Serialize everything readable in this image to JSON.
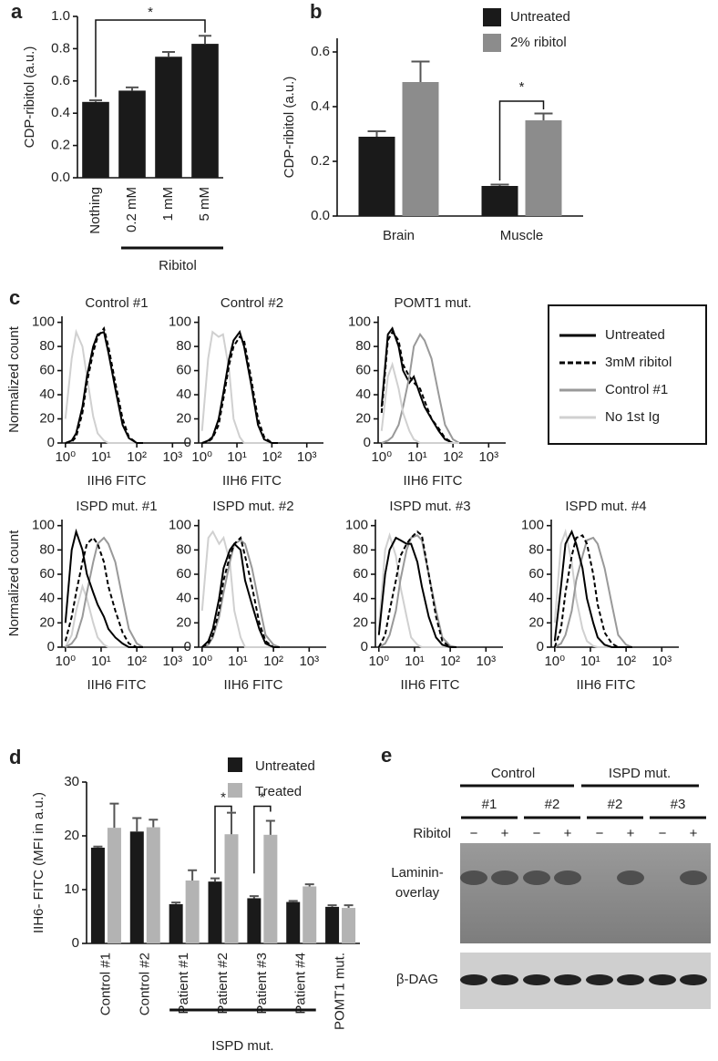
{
  "chart_data": [
    {
      "type": "bar",
      "panel": "a",
      "ylabel": "CDP-ribitol (a.u.)",
      "categories": [
        "Nothing",
        "0.2 mM",
        "1 mM",
        "5 mM"
      ],
      "values": [
        0.47,
        0.54,
        0.75,
        0.83
      ],
      "errors": [
        0.01,
        0.02,
        0.03,
        0.05
      ],
      "color": "#1a1a1a",
      "ylim": [
        0,
        1.0
      ],
      "yticks": [
        {
          "value": 0,
          "label": "0.0"
        },
        0.2,
        0.4,
        0.6,
        0.8,
        {
          "value": 1.0,
          "label": "1.0"
        }
      ],
      "group_label": "Ribitol",
      "annotations": [
        "*"
      ]
    },
    {
      "type": "groupedbar",
      "panel": "b",
      "ylabel": "CDP-ribitol (a.u.)",
      "categories": [
        "Brain",
        "Muscle"
      ],
      "series": [
        {
          "name": "Untreated",
          "color": "#1a1a1a",
          "values": [
            0.29,
            0.11
          ],
          "errors": [
            0.02,
            0.005
          ]
        },
        {
          "name": "2% ribitol",
          "color": "#8c8c8c",
          "values": [
            0.49,
            0.35
          ],
          "errors": [
            0.075,
            0.025
          ]
        }
      ],
      "ylim": [
        0,
        0.65
      ],
      "yticks": [
        {
          "value": 0,
          "label": "0.0"
        },
        0.2,
        0.4,
        0.6
      ],
      "annotations": [
        "*"
      ]
    },
    {
      "type": "hist",
      "panel": "c",
      "title": "Control #1",
      "ylabel": "Normalized count",
      "xlabel": "IIH6 FITC",
      "xlog": true,
      "x": [
        1,
        1.5,
        2,
        3,
        4,
        6,
        8,
        12,
        16,
        25,
        40,
        60,
        100,
        150
      ],
      "xlim": [
        0.8,
        3000
      ],
      "xticks": [
        {
          "value": 1,
          "label": "10⁰"
        },
        {
          "value": 10,
          "label": "10¹"
        },
        {
          "value": 100,
          "label": "10²"
        },
        {
          "value": 1000,
          "label": "10³"
        }
      ],
      "ylim": [
        0,
        105
      ],
      "yticks": [
        0,
        20,
        40,
        60,
        80,
        100
      ],
      "series": [
        {
          "color": "#d0d0d0",
          "dash": false,
          "values": [
            20,
            70,
            92,
            80,
            55,
            22,
            8,
            2,
            0,
            0,
            0,
            0,
            0,
            0
          ]
        },
        {
          "color": "#000000",
          "dash": false,
          "values": [
            0,
            2,
            8,
            30,
            55,
            80,
            90,
            92,
            75,
            45,
            15,
            4,
            0,
            0
          ]
        },
        {
          "color": "#000000",
          "dash": true,
          "values": [
            0,
            1,
            5,
            25,
            50,
            75,
            88,
            95,
            80,
            50,
            20,
            5,
            0,
            0
          ]
        }
      ]
    },
    {
      "type": "hist",
      "title": "Control #2",
      "xlabel": "IIH6 FITC",
      "xlog": true,
      "x": [
        1,
        1.5,
        2,
        3,
        4,
        6,
        8,
        12,
        16,
        25,
        40,
        60,
        100,
        150
      ],
      "xlim": [
        0.8,
        3000
      ],
      "xticks": [
        {
          "value": 1,
          "label": "10⁰"
        },
        {
          "value": 10,
          "label": "10¹"
        },
        {
          "value": 100,
          "label": "10²"
        },
        {
          "value": 1000,
          "label": "10³"
        }
      ],
      "ylim": [
        0,
        105
      ],
      "yticks": [
        0,
        20,
        40,
        60,
        80,
        100
      ],
      "series": [
        {
          "color": "#d0d0d0",
          "dash": false,
          "values": [
            10,
            70,
            92,
            88,
            90,
            60,
            20,
            5,
            0,
            0,
            0,
            0,
            0,
            0
          ]
        },
        {
          "color": "#000000",
          "dash": false,
          "values": [
            0,
            2,
            5,
            20,
            40,
            70,
            85,
            92,
            80,
            50,
            15,
            3,
            0,
            0
          ]
        },
        {
          "color": "#000000",
          "dash": true,
          "values": [
            0,
            1,
            4,
            15,
            35,
            65,
            80,
            88,
            85,
            55,
            20,
            5,
            0,
            0
          ]
        }
      ]
    },
    {
      "type": "hist",
      "title": "POMT1 mut.",
      "xlabel": "IIH6 FITC",
      "xlog": true,
      "x": [
        1,
        1.5,
        2,
        3,
        4,
        6,
        8,
        12,
        16,
        25,
        40,
        60,
        100,
        150
      ],
      "xlim": [
        0.8,
        3000
      ],
      "xticks": [
        {
          "value": 1,
          "label": "10⁰"
        },
        {
          "value": 10,
          "label": "10¹"
        },
        {
          "value": 100,
          "label": "10²"
        },
        {
          "value": 1000,
          "label": "10³"
        }
      ],
      "ylim": [
        0,
        105
      ],
      "yticks": [
        0,
        20,
        40,
        60,
        80,
        100
      ],
      "legend": "right",
      "series": [
        {
          "name": "Untreated",
          "color": "#000000",
          "dash": false,
          "values": [
            30,
            90,
            95,
            80,
            60,
            50,
            55,
            40,
            30,
            20,
            10,
            3,
            0,
            0
          ]
        },
        {
          "name": "3mM ribitol",
          "color": "#000000",
          "dash": true,
          "values": [
            25,
            85,
            92,
            85,
            65,
            55,
            50,
            45,
            35,
            20,
            12,
            4,
            0,
            0
          ]
        },
        {
          "name": "Control #1",
          "color": "#999999",
          "dash": false,
          "values": [
            0,
            2,
            5,
            15,
            30,
            55,
            80,
            90,
            85,
            70,
            40,
            15,
            3,
            0
          ]
        },
        {
          "name": "No 1st Ig",
          "color": "#d0d0d0",
          "dash": false,
          "values": [
            10,
            55,
            65,
            45,
            25,
            10,
            3,
            0,
            0,
            0,
            0,
            0,
            0,
            0
          ]
        }
      ]
    },
    {
      "type": "hist",
      "title": "ISPD mut. #1",
      "ylabel": "Normalized count",
      "xlabel": "IIH6 FITC",
      "xlog": true,
      "x": [
        1,
        1.5,
        2,
        3,
        4,
        6,
        8,
        12,
        16,
        25,
        40,
        60,
        100,
        150
      ],
      "xlim": [
        0.8,
        3000
      ],
      "xticks": [
        {
          "value": 1,
          "label": "10⁰"
        },
        {
          "value": 10,
          "label": "10¹"
        },
        {
          "value": 100,
          "label": "10²"
        },
        {
          "value": 1000,
          "label": "10³"
        }
      ],
      "ylim": [
        0,
        105
      ],
      "yticks": [
        0,
        20,
        40,
        60,
        80,
        100
      ],
      "series": [
        {
          "color": "#d0d0d0",
          "dash": false,
          "values": [
            0,
            10,
            30,
            50,
            40,
            20,
            8,
            2,
            0,
            0,
            0,
            0,
            0,
            0
          ]
        },
        {
          "color": "#999999",
          "dash": false,
          "values": [
            0,
            3,
            8,
            25,
            45,
            70,
            85,
            90,
            85,
            70,
            40,
            15,
            3,
            0
          ]
        },
        {
          "color": "#000000",
          "dash": false,
          "values": [
            20,
            80,
            95,
            80,
            60,
            45,
            35,
            25,
            15,
            8,
            3,
            0,
            0,
            0
          ]
        },
        {
          "color": "#000000",
          "dash": true,
          "values": [
            5,
            25,
            45,
            70,
            85,
            90,
            85,
            70,
            50,
            30,
            12,
            3,
            0,
            0
          ]
        }
      ]
    },
    {
      "type": "hist",
      "title": "ISPD mut. #2",
      "xlabel": "IIH6 FITC",
      "xlog": true,
      "x": [
        1,
        1.5,
        2,
        3,
        4,
        6,
        8,
        12,
        16,
        25,
        40,
        60,
        100,
        150
      ],
      "xlim": [
        0.8,
        3000
      ],
      "xticks": [
        {
          "value": 1,
          "label": "10⁰"
        },
        {
          "value": 10,
          "label": "10¹"
        },
        {
          "value": 100,
          "label": "10²"
        },
        {
          "value": 1000,
          "label": "10³"
        }
      ],
      "ylim": [
        0,
        105
      ],
      "yticks": [
        0,
        20,
        40,
        60,
        80,
        100
      ],
      "series": [
        {
          "color": "#d0d0d0",
          "dash": false,
          "values": [
            30,
            90,
            95,
            85,
            90,
            70,
            30,
            8,
            0,
            0,
            0,
            0,
            0,
            0
          ]
        },
        {
          "color": "#999999",
          "dash": false,
          "values": [
            0,
            2,
            8,
            25,
            45,
            70,
            85,
            88,
            85,
            65,
            35,
            10,
            2,
            0
          ]
        },
        {
          "color": "#000000",
          "dash": false,
          "values": [
            0,
            5,
            15,
            40,
            65,
            80,
            85,
            80,
            55,
            35,
            15,
            3,
            0,
            0
          ]
        },
        {
          "color": "#000000",
          "dash": true,
          "values": [
            0,
            3,
            10,
            30,
            55,
            75,
            85,
            90,
            75,
            50,
            20,
            5,
            0,
            0
          ]
        }
      ]
    },
    {
      "type": "hist",
      "title": "ISPD mut. #3",
      "xlabel": "IIH6 FITC",
      "xlog": true,
      "x": [
        1,
        1.5,
        2,
        3,
        4,
        6,
        8,
        12,
        16,
        25,
        40,
        60,
        100,
        150
      ],
      "xlim": [
        0.8,
        3000
      ],
      "xticks": [
        {
          "value": 1,
          "label": "10⁰"
        },
        {
          "value": 10,
          "label": "10¹"
        },
        {
          "value": 100,
          "label": "10²"
        },
        {
          "value": 1000,
          "label": "10³"
        }
      ],
      "ylim": [
        0,
        105
      ],
      "yticks": [
        0,
        20,
        40,
        60,
        80,
        100
      ],
      "series": [
        {
          "color": "#d0d0d0",
          "dash": false,
          "values": [
            15,
            80,
            92,
            75,
            50,
            25,
            8,
            2,
            0,
            0,
            0,
            0,
            0,
            0
          ]
        },
        {
          "color": "#999999",
          "dash": false,
          "values": [
            0,
            3,
            10,
            30,
            55,
            80,
            90,
            92,
            88,
            60,
            30,
            8,
            1,
            0
          ]
        },
        {
          "color": "#000000",
          "dash": false,
          "values": [
            10,
            60,
            80,
            90,
            88,
            85,
            85,
            70,
            50,
            25,
            8,
            2,
            0,
            0
          ]
        },
        {
          "color": "#000000",
          "dash": true,
          "values": [
            0,
            10,
            30,
            55,
            75,
            85,
            90,
            95,
            92,
            60,
            25,
            5,
            0,
            0
          ]
        }
      ]
    },
    {
      "type": "hist",
      "title": "ISPD mut. #4",
      "xlabel": "IIH6 FITC",
      "xlog": true,
      "x": [
        1,
        1.5,
        2,
        3,
        4,
        6,
        8,
        12,
        16,
        25,
        40,
        60,
        100,
        150
      ],
      "xlim": [
        0.8,
        3000
      ],
      "xticks": [
        {
          "value": 1,
          "label": "10⁰"
        },
        {
          "value": 10,
          "label": "10¹"
        },
        {
          "value": 100,
          "label": "10²"
        },
        {
          "value": 1000,
          "label": "10³"
        }
      ],
      "ylim": [
        0,
        105
      ],
      "yticks": [
        0,
        20,
        40,
        60,
        80,
        100
      ],
      "series": [
        {
          "color": "#d0d0d0",
          "dash": false,
          "values": [
            20,
            85,
            95,
            70,
            40,
            15,
            5,
            1,
            0,
            0,
            0,
            0,
            0,
            0
          ]
        },
        {
          "color": "#999999",
          "dash": false,
          "values": [
            0,
            3,
            10,
            30,
            55,
            75,
            88,
            90,
            85,
            65,
            35,
            10,
            2,
            0
          ]
        },
        {
          "color": "#000000",
          "dash": false,
          "values": [
            5,
            50,
            85,
            95,
            85,
            65,
            40,
            20,
            8,
            2,
            0,
            0,
            0,
            0
          ]
        },
        {
          "color": "#000000",
          "dash": true,
          "values": [
            0,
            15,
            45,
            75,
            90,
            92,
            85,
            60,
            35,
            12,
            3,
            0,
            0,
            0
          ]
        }
      ]
    },
    {
      "type": "groupedbar",
      "panel": "d",
      "ylabel": "IIH6- FITC (MFI in a.u.)",
      "categories": [
        "Control #1",
        "Control #2",
        "Patient #1",
        "Patient #2",
        "Patient #3",
        "Patient #4",
        "POMT1 mut."
      ],
      "series": [
        {
          "name": "Untreated",
          "color": "#1a1a1a",
          "values": [
            17.8,
            20.8,
            7.3,
            11.5,
            8.4,
            7.7,
            6.8
          ],
          "errors": [
            0.2,
            2.5,
            0.3,
            0.6,
            0.4,
            0.2,
            0.3
          ]
        },
        {
          "name": "Treated",
          "color": "#b3b3b3",
          "values": [
            21.5,
            21.6,
            11.7,
            20.3,
            20.2,
            10.6,
            6.6
          ],
          "errors": [
            4.5,
            1.4,
            1.9,
            4.0,
            2.6,
            0.4,
            0.5
          ]
        }
      ],
      "ylim": [
        0,
        30
      ],
      "yticks": [
        0,
        10,
        20,
        30
      ],
      "group_label": "ISPD mut.",
      "annotations": [
        "*",
        "*"
      ]
    }
  ],
  "blot": {
    "panel": "e",
    "groups": [
      "Control",
      "ISPD mut."
    ],
    "lanes": [
      "#1",
      "#2",
      "#2",
      "#3"
    ],
    "treatment_label": "Ribitol",
    "treatments": [
      "−",
      "+",
      "−",
      "+",
      "−",
      "+",
      "−",
      "+"
    ],
    "laminin_label": [
      "Laminin-",
      "overlay"
    ],
    "dag_label": "β-DAG"
  }
}
